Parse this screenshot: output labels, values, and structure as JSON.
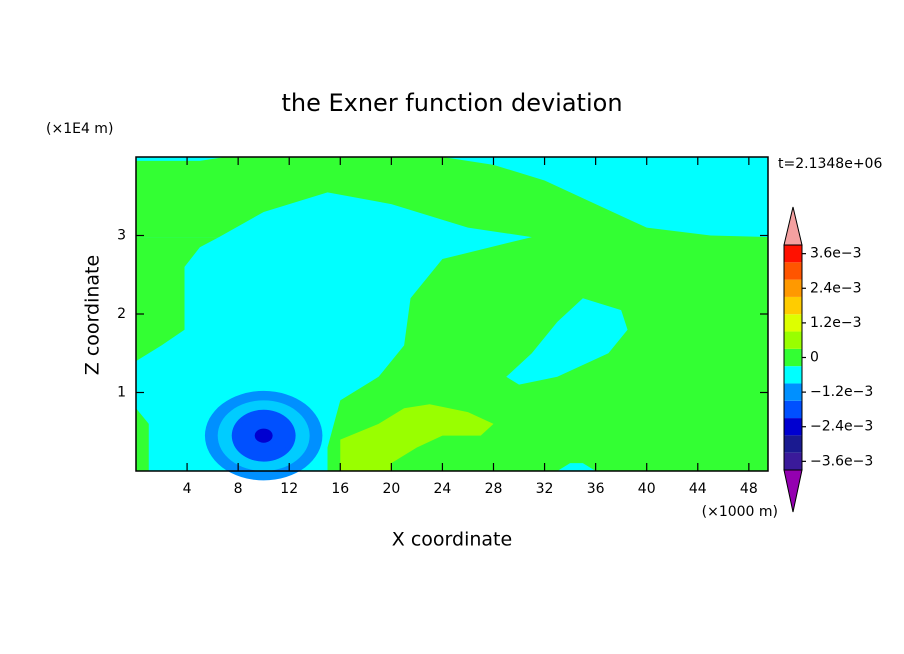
{
  "chart_data": {
    "type": "contour",
    "title": "the Exner function deviation",
    "x_label": "X coordinate",
    "y_label": "Z coordinate",
    "x_unit": "(×1000 m)",
    "y_unit": "(×1E4 m)",
    "annotation": "t=2.1348e+06",
    "xlim": [
      0,
      49.5
    ],
    "ylim": [
      0,
      4
    ],
    "xticks": [
      4,
      8,
      12,
      16,
      20,
      24,
      28,
      32,
      36,
      40,
      44,
      48
    ],
    "yticks": [
      1,
      2,
      3
    ],
    "levels": [
      -0.0039,
      -0.0033,
      -0.0027,
      -0.0021,
      -0.0015,
      -0.0009,
      -0.0003,
      0.0003,
      0.0009,
      0.0015,
      0.0021,
      0.0027,
      0.0033,
      0.0039
    ],
    "colors": [
      "#3a1a9a",
      "#1a1a90",
      "#0000d0",
      "#0050ff",
      "#0090ff",
      "#00ffff",
      "#33ff33",
      "#99ff00",
      "#ddff00",
      "#ffcc00",
      "#ff9900",
      "#ff5500",
      "#ff1100"
    ],
    "extend_colors": [
      "#9400b0",
      "#f4a0a0"
    ],
    "cticks": [
      {
        "value": -0.0036,
        "label": "−3.6e−3"
      },
      {
        "value": -0.0024,
        "label": "−2.4e−3"
      },
      {
        "value": -0.0012,
        "label": "−1.2e−3"
      },
      0,
      {
        "value": 0.0012,
        "label": "1.2e−3"
      },
      {
        "value": 0.0024,
        "label": "2.4e−3"
      },
      {
        "value": 0.0036,
        "label": "3.6e−3"
      }
    ]
  }
}
